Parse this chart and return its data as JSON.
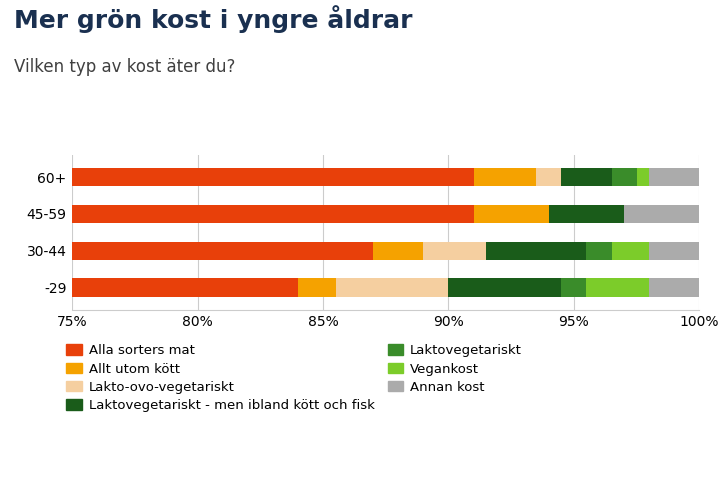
{
  "title": "Mer grön kost i yngre åldrar",
  "subtitle": "Vilken typ av kost äter du?",
  "categories": [
    "-29",
    "30-44",
    "45-59",
    "60+"
  ],
  "xlim": [
    75,
    100
  ],
  "xticks": [
    75,
    80,
    85,
    90,
    95,
    100
  ],
  "xtick_labels": [
    "75%",
    "80%",
    "85%",
    "90%",
    "95%",
    "100%"
  ],
  "segments": [
    {
      "label": "Alla sorters mat",
      "color": "#E8400A",
      "values_order": [
        "-29",
        "30-44",
        "45-59",
        "60+"
      ],
      "values": [
        84.0,
        87.0,
        91.0,
        91.0
      ]
    },
    {
      "label": "Allt utom kött",
      "color": "#F5A200",
      "values": [
        1.5,
        2.0,
        3.0,
        2.5
      ]
    },
    {
      "label": "Lakto-ovo-vegetariskt",
      "color": "#F5CFA0",
      "values": [
        4.5,
        2.5,
        0.0,
        1.0
      ]
    },
    {
      "label": "Laktovegetariskt - men ibland kött och fisk",
      "color": "#1A5C1A",
      "values": [
        4.5,
        4.0,
        3.0,
        2.0
      ]
    },
    {
      "label": "Laktovegetariskt",
      "color": "#3A8C2A",
      "values": [
        1.0,
        1.0,
        0.0,
        1.0
      ]
    },
    {
      "label": "Vegankost",
      "color": "#7CCC2A",
      "values": [
        2.5,
        1.5,
        0.0,
        0.5
      ]
    },
    {
      "label": "Annan kost",
      "color": "#ABABAB",
      "values": [
        2.0,
        2.0,
        3.0,
        2.0
      ]
    }
  ],
  "background_color": "#FFFFFF",
  "title_color": "#1A3050",
  "subtitle_color": "#404040",
  "title_fontsize": 18,
  "subtitle_fontsize": 12,
  "tick_fontsize": 10,
  "legend_fontsize": 9.5,
  "bar_height": 0.5
}
